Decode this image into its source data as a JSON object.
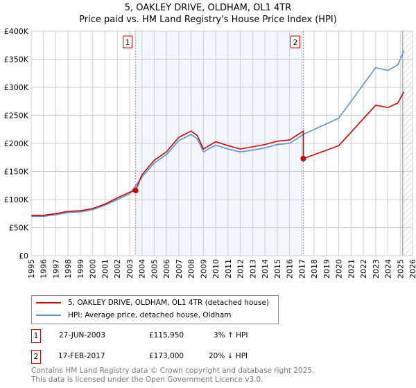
{
  "chart_data": {
    "type": "line",
    "title": "5, OAKLEY DRIVE, OLDHAM, OL1 4TR",
    "subtitle": "Price paid vs. HM Land Registry's House Price Index (HPI)",
    "xlim": [
      1995,
      2026
    ],
    "ylim": [
      0,
      400000
    ],
    "x_ticks": [
      "1995",
      "1996",
      "1997",
      "1998",
      "1999",
      "2000",
      "2001",
      "2002",
      "2003",
      "2004",
      "2005",
      "2006",
      "2007",
      "2008",
      "2009",
      "2010",
      "2011",
      "2012",
      "2013",
      "2014",
      "2015",
      "2016",
      "2017",
      "2018",
      "2019",
      "2020",
      "2021",
      "2022",
      "2023",
      "2024",
      "2025",
      "2026"
    ],
    "y_ticks": [
      {
        "v": 0,
        "label": "£0"
      },
      {
        "v": 50000,
        "label": "£50K"
      },
      {
        "v": 100000,
        "label": "£100K"
      },
      {
        "v": 150000,
        "label": "£150K"
      },
      {
        "v": 200000,
        "label": "£200K"
      },
      {
        "v": 250000,
        "label": "£250K"
      },
      {
        "v": 300000,
        "label": "£300K"
      },
      {
        "v": 350000,
        "label": "£350K"
      },
      {
        "v": 400000,
        "label": "£400K"
      }
    ],
    "grid": true,
    "series": [
      {
        "name": "5, OAKLEY DRIVE, OLDHAM, OL1 4TR (detached house)",
        "color": "#cc0000",
        "x": [
          1995,
          1996,
          1997,
          1998,
          1999,
          2000,
          2001,
          2002,
          2003,
          2003.49,
          2003.49,
          2004,
          2005,
          2006,
          2007,
          2008,
          2008.5,
          2009,
          2010,
          2011,
          2012,
          2013,
          2014,
          2015,
          2016,
          2017.12,
          2017.12,
          2018,
          2019,
          2020,
          2021,
          2022,
          2023,
          2024,
          2024.8,
          2025.3
        ],
        "y": [
          72000,
          72000,
          75000,
          79000,
          80000,
          84000,
          92000,
          103000,
          113000,
          115950,
          115950,
          144000,
          170000,
          185000,
          211000,
          222000,
          214000,
          190000,
          203000,
          196000,
          190000,
          194000,
          198000,
          204000,
          206000,
          222000,
          173000,
          180000,
          188000,
          196000,
          220000,
          244000,
          268000,
          264000,
          272000,
          292000
        ]
      },
      {
        "name": "HPI: Average price, detached house, Oldham",
        "color": "#5b8fd0",
        "x": [
          1995,
          1996,
          1997,
          1998,
          1999,
          2000,
          2001,
          2002,
          2003,
          2004,
          2005,
          2006,
          2007,
          2008,
          2008.5,
          2009,
          2010,
          2011,
          2012,
          2013,
          2014,
          2015,
          2016,
          2017.12,
          2018,
          2019,
          2020,
          2021,
          2022,
          2023,
          2024,
          2024.8,
          2025.3
        ],
        "y": [
          70000,
          70000,
          73000,
          77000,
          78000,
          82000,
          90000,
          100000,
          110000,
          140000,
          165000,
          180000,
          205000,
          216000,
          208000,
          185000,
          197000,
          190000,
          185000,
          188000,
          192000,
          198000,
          200000,
          216000,
          225000,
          235000,
          245000,
          275000,
          305000,
          335000,
          330000,
          340000,
          365000
        ]
      }
    ],
    "sales": [
      {
        "id": "1",
        "x": 2003.49,
        "y": 115950
      },
      {
        "id": "2",
        "x": 2017.12,
        "y": 173000
      }
    ],
    "hatch_from": 2025.2
  },
  "legend": {
    "items": [
      "5, OAKLEY DRIVE, OLDHAM, OL1 4TR (detached house)",
      "HPI: Average price, detached house, Oldham"
    ]
  },
  "transactions": [
    {
      "id": "1",
      "date": "27-JUN-2003",
      "price": "£115,950",
      "hpi": "3% ↑ HPI"
    },
    {
      "id": "2",
      "date": "17-FEB-2017",
      "price": "£173,000",
      "hpi": "20% ↓ HPI"
    }
  ],
  "footer": [
    "Contains HM Land Registry data © Crown copyright and database right 2025.",
    "This data is licensed under the Open Government Licence v3.0."
  ]
}
